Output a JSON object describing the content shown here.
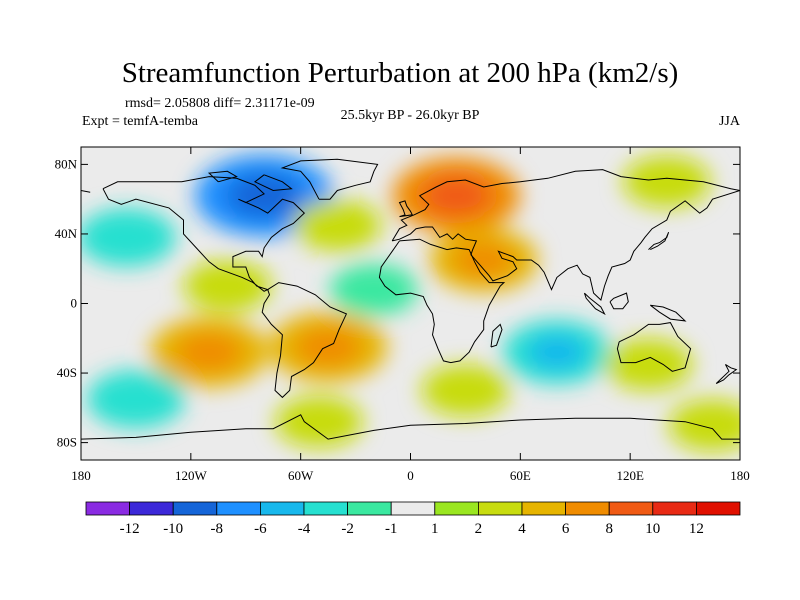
{
  "chart_data": {
    "type": "heatmap",
    "title": "Streamfunction Perturbation at 200 hPa (km2/s)",
    "stats": "rmsd= 2.05808 diff= 2.31171e-09",
    "experiment": "Expt = temfA-temba",
    "period": "25.5kyr BP - 26.0kyr BP",
    "season": "JJA",
    "projection": "cylindrical equidistant",
    "xlim": [
      -180,
      180
    ],
    "ylim": [
      -90,
      90
    ],
    "x_ticks": [
      {
        "value": -180,
        "label": "180"
      },
      {
        "value": -120,
        "label": "120W"
      },
      {
        "value": -60,
        "label": "60W"
      },
      {
        "value": 0,
        "label": "0"
      },
      {
        "value": 60,
        "label": "60E"
      },
      {
        "value": 120,
        "label": "120E"
      },
      {
        "value": 180,
        "label": "180"
      }
    ],
    "y_ticks": [
      {
        "value": 80,
        "label": "80N"
      },
      {
        "value": 40,
        "label": "40N"
      },
      {
        "value": 0,
        "label": "0"
      },
      {
        "value": -40,
        "label": "40S"
      },
      {
        "value": -80,
        "label": "80S"
      }
    ],
    "colorbar": {
      "levels": [
        -12,
        -10,
        -8,
        -6,
        -4,
        -2,
        -1,
        1,
        2,
        4,
        6,
        8,
        10,
        12
      ],
      "labels": [
        "-12",
        "-10",
        "-8",
        "-6",
        "-4",
        "-2",
        "-1",
        "1",
        "2",
        "4",
        "6",
        "8",
        "10",
        "12"
      ],
      "colors": [
        "#8a2be2",
        "#3c28d8",
        "#1565d8",
        "#1e90ff",
        "#18b8ec",
        "#26e0d0",
        "#3ae8a0",
        "#ebebeb",
        "#9ae620",
        "#c8dc10",
        "#e6b400",
        "#f08c00",
        "#f05a14",
        "#e82a14",
        "#e01000"
      ]
    },
    "anomalies": [
      {
        "region": "North America / Canada",
        "lon": -80,
        "lat": 62,
        "value": -7
      },
      {
        "region": "North Pacific",
        "lon": -155,
        "lat": 38,
        "value": -3
      },
      {
        "region": "Tropical Pacific / Mexico",
        "lon": -100,
        "lat": 10,
        "value": 2
      },
      {
        "region": "Northern Europe",
        "lon": 25,
        "lat": 62,
        "value": 6
      },
      {
        "region": "Arabia",
        "lon": 40,
        "lat": 25,
        "value": 4
      },
      {
        "region": "North Atlantic",
        "lon": -40,
        "lat": 45,
        "value": 2
      },
      {
        "region": "Tropical Atlantic",
        "lon": -20,
        "lat": 8,
        "value": -2
      },
      {
        "region": "South Pacific",
        "lon": -110,
        "lat": -28,
        "value": 5
      },
      {
        "region": "South America",
        "lon": -45,
        "lat": -25,
        "value": 5
      },
      {
        "region": "Indian Ocean",
        "lon": 80,
        "lat": -28,
        "value": -4
      },
      {
        "region": "Australia",
        "lon": 130,
        "lat": -35,
        "value": 2
      },
      {
        "region": "Southern Ocean",
        "lon": -150,
        "lat": -55,
        "value": -3
      },
      {
        "region": "Antarctic coast",
        "lon": -50,
        "lat": -68,
        "value": 2
      },
      {
        "region": "Northeast Asia",
        "lon": 140,
        "lat": 70,
        "value": 2
      },
      {
        "region": "South Indian Ocean",
        "lon": 30,
        "lat": -50,
        "value": 2
      },
      {
        "region": "Southwest Pacific",
        "lon": 165,
        "lat": -70,
        "value": 2
      }
    ]
  }
}
